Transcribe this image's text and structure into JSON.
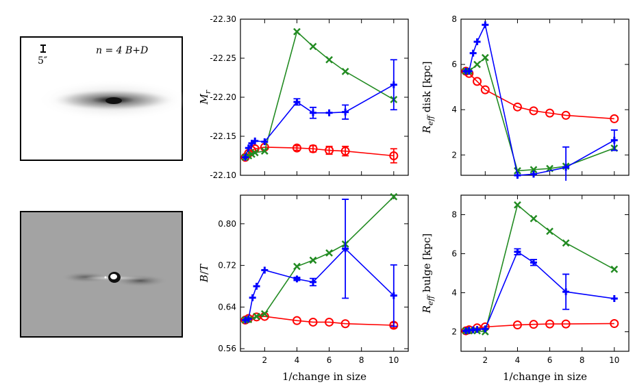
{
  "images": {
    "galaxy": {
      "label": "galaxy-image",
      "scale_label": "5″",
      "model_label": "n = 4 B+D"
    },
    "residual": {
      "label": "residual-image"
    }
  },
  "colors": {
    "red": "#ff0000",
    "blue": "#0000ff",
    "green": "#228b22"
  },
  "chart_data": [
    {
      "id": "mag",
      "type": "line",
      "title": "",
      "xlabel": "",
      "ylabel": "M_r",
      "ylim": [
        -22.3,
        -22.1
      ],
      "y_inverted": true,
      "xlim": [
        0.5,
        10.9
      ],
      "xticks": [
        2,
        4,
        6,
        8,
        10
      ],
      "xticklabels": [
        "",
        "",
        "",
        "",
        ""
      ],
      "yticks": [
        -22.3,
        -22.25,
        -22.2,
        -22.15,
        -22.1
      ],
      "yticklabels": [
        "-22.30",
        "-22.25",
        "-22.20",
        "-22.15",
        "-22.10"
      ],
      "series": [
        {
          "name": "red",
          "marker": "circle",
          "x": [
            0.8,
            1,
            1.2,
            1.4,
            2,
            4,
            5,
            6,
            7,
            10
          ],
          "y": [
            -22.123,
            -22.128,
            -22.132,
            -22.134,
            -22.136,
            -22.135,
            -22.134,
            -22.132,
            -22.131,
            -22.125
          ],
          "err": [
            0,
            0,
            0,
            0,
            0,
            0.003,
            0.004,
            0.005,
            0.006,
            0.009
          ]
        },
        {
          "name": "green",
          "marker": "x",
          "x": [
            0.8,
            1,
            1.2,
            1.4,
            2,
            4,
            5,
            6,
            7,
            10
          ],
          "y": [
            -22.123,
            -22.125,
            -22.127,
            -22.129,
            -22.131,
            -22.284,
            -22.265,
            -22.248,
            -22.233,
            -22.197
          ],
          "err": [
            0,
            0,
            0,
            0,
            0,
            0,
            0,
            0,
            0,
            0
          ]
        },
        {
          "name": "blue",
          "marker": "plus",
          "x": [
            0.8,
            1,
            1.2,
            1.4,
            2,
            4,
            5,
            6,
            7,
            10
          ],
          "y": [
            -22.123,
            -22.135,
            -22.141,
            -22.144,
            -22.143,
            -22.194,
            -22.18,
            -22.18,
            -22.181,
            -22.216
          ],
          "err": [
            0,
            0,
            0,
            0,
            0,
            0.004,
            0.007,
            0,
            0.009,
            0.032
          ]
        }
      ]
    },
    {
      "id": "rdisk",
      "type": "line",
      "title": "",
      "xlabel": "",
      "ylabel": "R_eff disk [kpc]",
      "ylim": [
        1.1,
        8.0
      ],
      "xlim": [
        0.5,
        10.9
      ],
      "xticks": [
        2,
        4,
        6,
        8,
        10
      ],
      "xticklabels": [
        "",
        "",
        "",
        "",
        ""
      ],
      "yticks": [
        2,
        4,
        6,
        8
      ],
      "yticklabels": [
        "2",
        "4",
        "6",
        "8"
      ],
      "series": [
        {
          "name": "red",
          "marker": "circle",
          "x": [
            0.8,
            1,
            1.5,
            2,
            4,
            5,
            6,
            7,
            10
          ],
          "y": [
            5.7,
            5.6,
            5.25,
            4.88,
            4.12,
            3.95,
            3.85,
            3.75,
            3.6
          ],
          "err": [
            0,
            0,
            0,
            0,
            0,
            0,
            0,
            0,
            0
          ]
        },
        {
          "name": "green",
          "marker": "x",
          "x": [
            0.8,
            1,
            1.5,
            2,
            4,
            5,
            6,
            7,
            10
          ],
          "y": [
            5.7,
            5.7,
            6.0,
            6.3,
            1.3,
            1.35,
            1.4,
            1.5,
            2.3
          ],
          "err": [
            0,
            0,
            0,
            0,
            0,
            0,
            0,
            0,
            0
          ]
        },
        {
          "name": "blue",
          "marker": "plus",
          "x": [
            0.8,
            1,
            1.25,
            1.5,
            2,
            4,
            5,
            7,
            10
          ],
          "y": [
            5.7,
            5.7,
            6.5,
            7.0,
            7.75,
            1.1,
            1.15,
            1.45,
            2.65
          ],
          "err": [
            0,
            0,
            0,
            0,
            0,
            0,
            0,
            0.9,
            0.45
          ]
        }
      ]
    },
    {
      "id": "bt",
      "type": "line",
      "title": "",
      "xlabel": "1/change in size",
      "ylabel": "B/T",
      "ylim": [
        0.555,
        0.855
      ],
      "xlim": [
        0.5,
        10.9
      ],
      "xticks": [
        2,
        4,
        6,
        8,
        10
      ],
      "xticklabels": [
        "2",
        "4",
        "6",
        "8",
        "10"
      ],
      "yticks": [
        0.56,
        0.64,
        0.72,
        0.8
      ],
      "yticklabels": [
        "0.56",
        "0.64",
        "0.72",
        "0.80"
      ],
      "series": [
        {
          "name": "red",
          "marker": "circle",
          "x": [
            0.8,
            1,
            1.5,
            2,
            4,
            5,
            6,
            7,
            10
          ],
          "y": [
            0.615,
            0.618,
            0.621,
            0.622,
            0.614,
            0.611,
            0.611,
            0.608,
            0.605
          ],
          "err": [
            0,
            0,
            0,
            0,
            0,
            0,
            0,
            0,
            0.005
          ]
        },
        {
          "name": "green",
          "marker": "x",
          "x": [
            0.8,
            1,
            1.5,
            2,
            4,
            5,
            6,
            7,
            10
          ],
          "y": [
            0.615,
            0.616,
            0.622,
            0.627,
            0.718,
            0.73,
            0.744,
            0.761,
            0.852
          ],
          "err": [
            0,
            0,
            0,
            0,
            0,
            0,
            0,
            0,
            0
          ]
        },
        {
          "name": "blue",
          "marker": "plus",
          "x": [
            0.8,
            1,
            1.25,
            1.5,
            2,
            4,
            5,
            7,
            10
          ],
          "y": [
            0.615,
            0.617,
            0.658,
            0.68,
            0.711,
            0.694,
            0.688,
            0.752,
            0.662
          ],
          "err": [
            0,
            0,
            0,
            0,
            0,
            0.003,
            0.007,
            0.095,
            0.059
          ]
        }
      ]
    },
    {
      "id": "rbulge",
      "type": "line",
      "title": "",
      "xlabel": "1/change in size",
      "ylabel": "R_eff bulge [kpc]",
      "ylim": [
        1.0,
        9.0
      ],
      "xlim": [
        0.5,
        10.9
      ],
      "xticks": [
        2,
        4,
        6,
        8,
        10
      ],
      "xticklabels": [
        "2",
        "4",
        "6",
        "8",
        "10"
      ],
      "yticks": [
        2,
        4,
        6,
        8
      ],
      "yticklabels": [
        "2",
        "4",
        "6",
        "8"
      ],
      "series": [
        {
          "name": "red",
          "marker": "circle",
          "x": [
            0.8,
            1,
            1.5,
            2,
            4,
            5,
            6,
            7,
            10
          ],
          "y": [
            2.05,
            2.1,
            2.2,
            2.25,
            2.35,
            2.38,
            2.4,
            2.4,
            2.42
          ],
          "err": [
            0,
            0,
            0,
            0,
            0,
            0,
            0,
            0,
            0
          ]
        },
        {
          "name": "green",
          "marker": "x",
          "x": [
            0.8,
            1,
            1.5,
            2,
            4,
            5,
            6,
            7,
            10
          ],
          "y": [
            2.05,
            2.05,
            2.05,
            2.0,
            8.5,
            7.8,
            7.15,
            6.55,
            5.2
          ],
          "err": [
            0,
            0,
            0,
            0,
            0,
            0,
            0,
            0,
            0
          ]
        },
        {
          "name": "blue",
          "marker": "plus",
          "x": [
            0.8,
            1,
            1.25,
            1.5,
            2,
            4,
            5,
            7,
            10
          ],
          "y": [
            2.05,
            2.08,
            2.1,
            2.12,
            2.15,
            6.1,
            5.55,
            4.05,
            3.7
          ],
          "err": [
            0,
            0,
            0,
            0,
            0,
            0.15,
            0.15,
            0.9,
            0
          ]
        }
      ]
    }
  ]
}
